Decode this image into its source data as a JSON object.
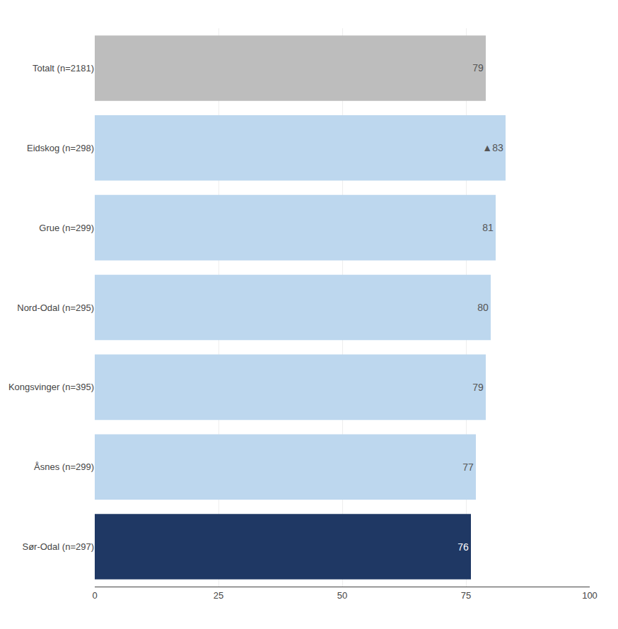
{
  "chart_data": {
    "type": "bar",
    "orientation": "horizontal",
    "categories": [
      "Sør-Odal (n=297)",
      "Åsnes (n=299)",
      "Kongsvinger (n=395)",
      "Nord-Odal (n=295)",
      "Grue (n=299)",
      "Eidskog (n=298)",
      "Totalt (n=2181)"
    ],
    "values": [
      76,
      77,
      79,
      80,
      81,
      83,
      79
    ],
    "value_labels": [
      "76",
      "77",
      "79",
      "80",
      "81",
      "▲83",
      "79"
    ],
    "colors": [
      "#1f3864",
      "#bdd7ee",
      "#bdd7ee",
      "#bdd7ee",
      "#bdd7ee",
      "#bdd7ee",
      "#bdbdbd"
    ],
    "data_labels": true,
    "xlim": [
      0,
      100
    ],
    "xticks": [
      0,
      25,
      50,
      75,
      100
    ],
    "grid": true
  }
}
